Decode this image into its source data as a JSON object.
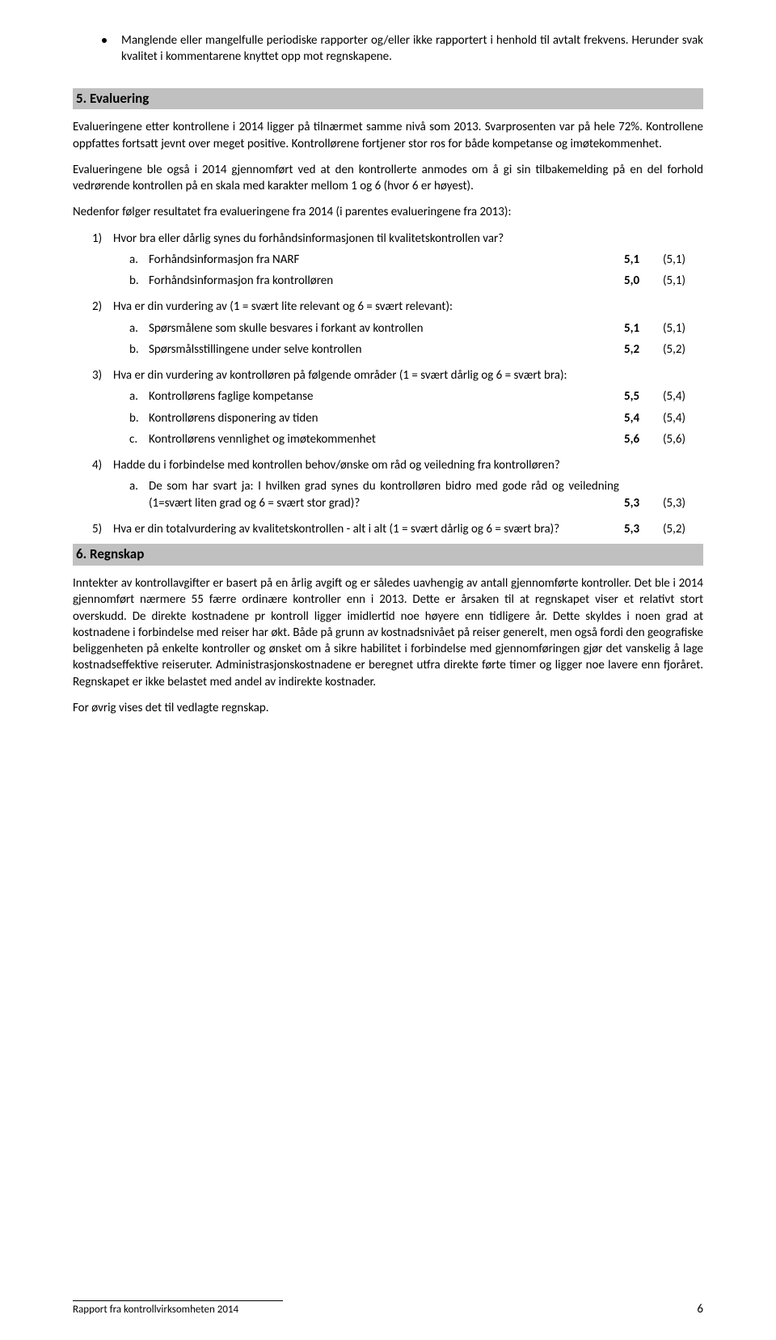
{
  "topBullet": "Manglende eller mangelfulle periodiske rapporter og/eller ikke rapportert i henhold til avtalt frekvens. Herunder svak kvalitet i kommentarene knyttet opp mot regnskapene.",
  "section5": {
    "title": "5. Evaluering",
    "p1": "Evalueringene etter kontrollene i 2014 ligger på tilnærmet samme nivå som 2013. Svarprosenten var på hele 72%. Kontrollene oppfattes fortsatt jevnt over meget positive. Kontrollørene fortjener stor ros for både kompetanse og imøtekommenhet.",
    "p2": "Evalueringene ble også i 2014 gjennomført ved at den kontrollerte anmodes om å gi sin tilbakemelding på en del forhold vedrørende kontrollen på en skala med karakter mellom 1 og 6 (hvor 6 er høyest).",
    "p3": "Nedenfor følger resultatet fra evalueringene fra 2014 (i parentes evalueringene fra 2013):"
  },
  "questions": [
    {
      "num": "1)",
      "text": "Hvor bra eller dårlig synes du forhåndsinformasjonen til kvalitetskontrollen var?",
      "subs": [
        {
          "m": "a.",
          "label": "Forhåndsinformasjon fra NARF",
          "val": "5,1",
          "paren": "(5,1)"
        },
        {
          "m": "b.",
          "label": "Forhåndsinformasjon fra kontrolløren",
          "val": "5,0",
          "paren": "(5,1)"
        }
      ]
    },
    {
      "num": "2)",
      "text": "Hva er din vurdering av (1 = svært lite relevant og 6 = svært relevant):",
      "subs": [
        {
          "m": "a.",
          "label": "Spørsmålene som skulle besvares i forkant av kontrollen",
          "val": "5,1",
          "paren": "(5,1)"
        },
        {
          "m": "b.",
          "label": "Spørsmålsstillingene under selve kontrollen",
          "val": "5,2",
          "paren": "(5,2)"
        }
      ]
    },
    {
      "num": "3)",
      "text": "Hva er din vurdering av kontrolløren på følgende områder (1 = svært dårlig og 6 = svært bra):",
      "subs": [
        {
          "m": "a.",
          "label": "Kontrollørens faglige kompetanse",
          "val": "5,5",
          "paren": "(5,4)"
        },
        {
          "m": "b.",
          "label": "Kontrollørens disponering av tiden",
          "val": "5,4",
          "paren": "(5,4)"
        },
        {
          "m": "c.",
          "label": "Kontrollørens vennlighet og imøtekommenhet",
          "val": "5,6",
          "paren": "(5,6)"
        }
      ]
    },
    {
      "num": "4)",
      "text": "Hadde du i forbindelse med kontrollen behov/ønske om råd og veiledning fra kontrolløren?",
      "justify": true,
      "subs": [
        {
          "m": "a.",
          "label": "De som har svart ja: I hvilken grad synes du kontrolløren bidro med gode råd og veiledning (1=svært liten grad og 6 = svært stor grad)?",
          "val": "5,3",
          "paren": "(5,3)",
          "justify": true
        }
      ]
    },
    {
      "num": "5)",
      "text": "Hva er din totalvurdering av kvalitetskontrollen - alt i alt (1 = svært dårlig og 6 = svært bra)?",
      "inlineScore": {
        "val": "5,3",
        "paren": "(5,2)"
      }
    }
  ],
  "section6": {
    "title": "6. Regnskap",
    "p1": "Inntekter av kontrollavgifter er basert på en årlig avgift og er således uavhengig av antall gjennomførte kontroller. Det ble i 2014 gjennomført nærmere 55 færre ordinære kontroller enn i 2013. Dette er årsaken til at regnskapet viser et relativt stort overskudd. De direkte kostnadene pr kontroll ligger imidlertid noe høyere enn tidligere år. Dette skyldes i noen grad at kostnadene i forbindelse med reiser har økt. Både på grunn av kostnadsnivået på reiser generelt, men også fordi den geografiske beliggenheten på enkelte kontroller og ønsket om å sikre habilitet i forbindelse med gjennomføringen gjør det vanskelig å lage kostnadseffektive reiseruter. Administrasjonskostnadene er beregnet utfra direkte førte timer og ligger noe lavere enn fjoråret. Regnskapet er ikke belastet med andel av indirekte kostnader.",
    "p2": "For øvrig vises det til vedlagte regnskap."
  },
  "footer": {
    "text": "Rapport fra kontrollvirksomheten 2014",
    "page": "6"
  }
}
